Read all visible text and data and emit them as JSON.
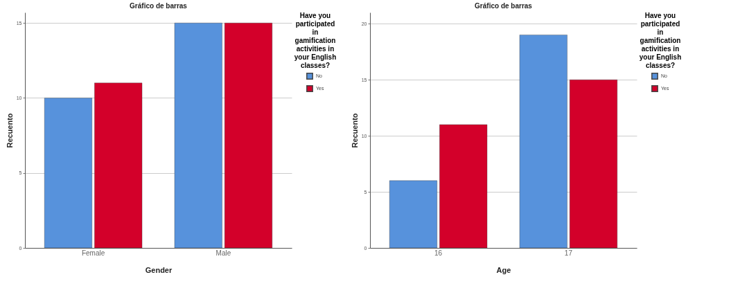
{
  "chart_data": [
    {
      "type": "bar",
      "title": "Gráfico de barras",
      "xlabel": "Gender",
      "ylabel": "Recuento",
      "legend_title": "Have you participated in gamification activities in your English classes?",
      "categories": [
        "Female",
        "Male"
      ],
      "series": [
        {
          "name": "No",
          "color": "#5792dc",
          "values": [
            10,
            15
          ]
        },
        {
          "name": "Yes",
          "color": "#d3002a",
          "values": [
            11,
            15
          ]
        }
      ],
      "ylim": [
        0,
        15.7
      ],
      "yticks": [
        0,
        5,
        10,
        15
      ],
      "grid": "y",
      "legend": "top right"
    },
    {
      "type": "bar",
      "title": "Gráfico de barras",
      "xlabel": "Age",
      "ylabel": "Recuento",
      "legend_title": "Have you participated in gamification activities in your English classes?",
      "categories": [
        "16",
        "17"
      ],
      "series": [
        {
          "name": "No",
          "color": "#5792dc",
          "values": [
            6,
            19
          ]
        },
        {
          "name": "Yes",
          "color": "#d3002a",
          "values": [
            11,
            15
          ]
        }
      ],
      "ylim": [
        0,
        21
      ],
      "yticks": [
        0,
        5,
        10,
        15,
        20
      ],
      "grid": "y",
      "legend": "top right"
    }
  ]
}
